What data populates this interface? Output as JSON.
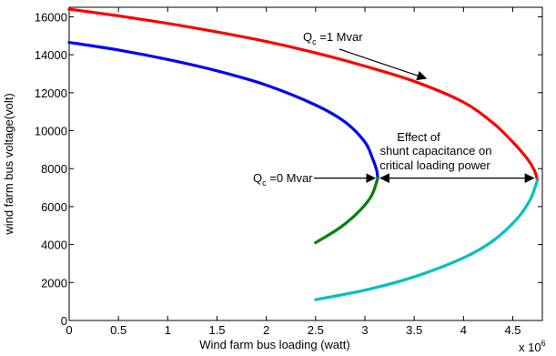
{
  "chart_data": {
    "type": "line",
    "xlabel": "Wind farm bus loading (watt)",
    "ylabel": "wind farm bus voltage(volt)",
    "x_multiplier_base": "x 10",
    "x_multiplier_exp": "6",
    "xlim": [
      0,
      4.8
    ],
    "ylim": [
      0,
      16500
    ],
    "x_ticks": [
      0,
      0.5,
      1,
      1.5,
      2,
      2.5,
      3,
      3.5,
      4,
      4.5
    ],
    "y_ticks": [
      0,
      2000,
      4000,
      6000,
      8000,
      10000,
      12000,
      14000,
      16000
    ],
    "grid": false,
    "series": [
      {
        "color": "#ff0000",
        "points": [
          [
            0,
            16400
          ],
          [
            0.5,
            16050
          ],
          [
            1,
            15650
          ],
          [
            1.5,
            15200
          ],
          [
            2,
            14700
          ],
          [
            2.5,
            14100
          ],
          [
            3,
            13400
          ],
          [
            3.5,
            12600
          ],
          [
            4,
            11500
          ],
          [
            4.3,
            10400
          ],
          [
            4.5,
            9400
          ],
          [
            4.65,
            8500
          ],
          [
            4.72,
            7900
          ],
          [
            4.75,
            7400
          ]
        ]
      },
      {
        "color": "#0000ff",
        "points": [
          [
            0,
            14650
          ],
          [
            0.5,
            14250
          ],
          [
            1,
            13750
          ],
          [
            1.5,
            13150
          ],
          [
            2,
            12400
          ],
          [
            2.5,
            11350
          ],
          [
            2.8,
            10450
          ],
          [
            3,
            9400
          ],
          [
            3.08,
            8500
          ],
          [
            3.12,
            7900
          ],
          [
            3.13,
            7500
          ]
        ]
      },
      {
        "color": "#00c0c0",
        "points": [
          [
            2.5,
            1100
          ],
          [
            3,
            1600
          ],
          [
            3.5,
            2300
          ],
          [
            4,
            3300
          ],
          [
            4.3,
            4200
          ],
          [
            4.55,
            5400
          ],
          [
            4.68,
            6400
          ],
          [
            4.75,
            7400
          ]
        ]
      },
      {
        "color": "#008000",
        "points": [
          [
            2.5,
            4100
          ],
          [
            2.75,
            4900
          ],
          [
            2.95,
            5800
          ],
          [
            3.07,
            6600
          ],
          [
            3.13,
            7500
          ]
        ]
      }
    ],
    "annotations": [
      {
        "key": "qc1",
        "text_main": "Q",
        "text_sub": "c",
        "text_rest": " =1 Mvar",
        "arrow_to": [
          3.62,
          12750
        ]
      },
      {
        "key": "qc0",
        "text_main": "Q",
        "text_sub": "c",
        "text_rest": " =0 Mvar",
        "arrow_to": [
          3.12,
          7500
        ]
      },
      {
        "key": "effect",
        "lines": [
          "Effect of",
          "shunt capacitance on",
          "critical loading power"
        ],
        "arrow_from": [
          3.14,
          7500
        ],
        "arrow_to": [
          4.73,
          7500
        ]
      }
    ]
  }
}
